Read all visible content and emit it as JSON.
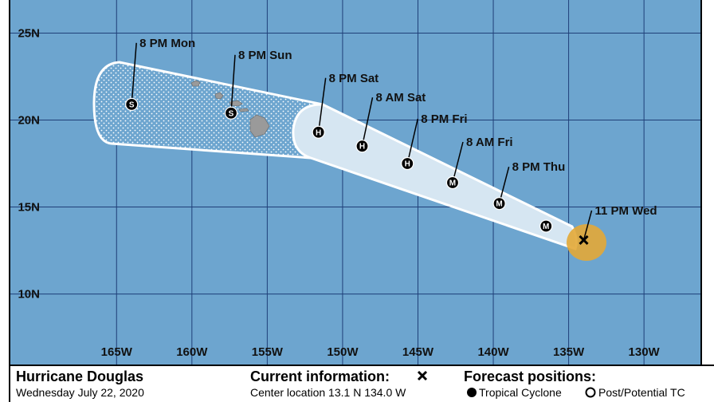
{
  "map": {
    "lonlim": [
      -172.1,
      -126.2
    ],
    "latlim": [
      5.9,
      26.9
    ],
    "lon_ticks": [
      {
        "value": -165,
        "label": "165W"
      },
      {
        "value": -160,
        "label": "160W"
      },
      {
        "value": -155,
        "label": "155W"
      },
      {
        "value": -150,
        "label": "150W"
      },
      {
        "value": -145,
        "label": "145W"
      },
      {
        "value": -140,
        "label": "140W"
      },
      {
        "value": -135,
        "label": "135W"
      },
      {
        "value": -130,
        "label": "130W"
      }
    ],
    "lat_ticks": [
      {
        "value": 25,
        "label": "25N"
      },
      {
        "value": 20,
        "label": "20N"
      },
      {
        "value": 15,
        "label": "15N"
      },
      {
        "value": 10,
        "label": "10N"
      }
    ],
    "current": {
      "label": "11 PM Wed",
      "lon": -134.0,
      "lat": 13.1
    },
    "points": [
      {
        "symbol": "M",
        "lon": -136.5,
        "lat": 13.9
      },
      {
        "label": "8 PM Thu",
        "symbol": "M",
        "lon": -139.6,
        "lat": 15.2
      },
      {
        "label": "8 AM Fri",
        "symbol": "M",
        "lon": -142.7,
        "lat": 16.4
      },
      {
        "label": "8 PM Fri",
        "symbol": "H",
        "lon": -145.7,
        "lat": 17.5
      },
      {
        "label": "8 AM Sat",
        "symbol": "H",
        "lon": -148.7,
        "lat": 18.5
      },
      {
        "label": "8 PM Sat",
        "symbol": "H",
        "lon": -151.6,
        "lat": 19.3
      },
      {
        "label": "8 PM Sun",
        "symbol": "S",
        "lon": -157.4,
        "lat": 20.4
      },
      {
        "label": "8 PM Mon",
        "symbol": "S",
        "lon": -164.0,
        "lat": 20.9
      }
    ]
  },
  "legend": {
    "storm": "Hurricane Douglas",
    "date": "Wednesday July 22, 2020",
    "current_title": "Current information:",
    "center": "Center location 13.1 N 134.0 W",
    "forecast_title": "Forecast positions:",
    "tropical": "Tropical Cyclone",
    "post": "Post/Potential TC"
  }
}
